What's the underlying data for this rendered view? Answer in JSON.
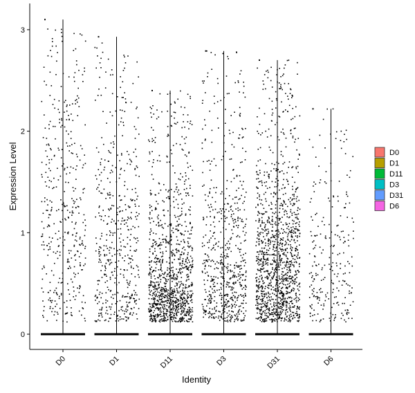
{
  "chart_data": {
    "type": "violin-jitter",
    "title": "",
    "xlabel": "Identity",
    "ylabel": "Expression Level",
    "categories": [
      "D0",
      "D1",
      "D11",
      "D3",
      "D31",
      "D6"
    ],
    "ylim": [
      -0.15,
      3.25
    ],
    "yticks": [
      0,
      1,
      2,
      3
    ],
    "grid": false,
    "legend_position": "right",
    "series": [
      {
        "name": "D0",
        "color": "#F8766D",
        "max": 3.1,
        "points_above_zero": 420,
        "zero_points": 900,
        "density_center": 1.0,
        "density_spread": 0.9
      },
      {
        "name": "D1",
        "color": "#B79F00",
        "max": 2.93,
        "points_above_zero": 500,
        "zero_points": 900,
        "density_center": 0.6,
        "density_spread": 0.7
      },
      {
        "name": "D11",
        "color": "#00BA38",
        "max": 2.4,
        "points_above_zero": 1100,
        "zero_points": 900,
        "density_center": 0.35,
        "density_spread": 0.45
      },
      {
        "name": "D3",
        "color": "#00BFC4",
        "max": 2.79,
        "points_above_zero": 650,
        "zero_points": 900,
        "density_center": 0.45,
        "density_spread": 0.6
      },
      {
        "name": "D31",
        "color": "#619CFF",
        "max": 2.7,
        "points_above_zero": 1300,
        "zero_points": 900,
        "density_center": 0.6,
        "density_spread": 0.5
      },
      {
        "name": "D6",
        "color": "#F564E3",
        "max": 2.22,
        "points_above_zero": 260,
        "zero_points": 700,
        "density_center": 0.55,
        "density_spread": 0.6
      }
    ]
  }
}
